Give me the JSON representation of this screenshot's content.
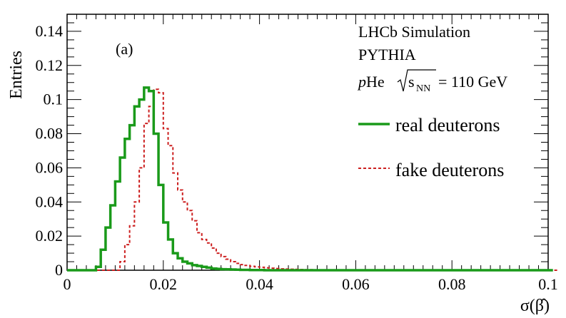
{
  "chart_data": {
    "type": "line",
    "style": "step",
    "xlabel": "σ(β̂)",
    "ylabel": "Entries",
    "xlim": [
      0,
      0.1
    ],
    "ylim": [
      0,
      0.15
    ],
    "bin_width": 0.001,
    "x_ticks": [
      0,
      0.02,
      0.04,
      0.06,
      0.08,
      0.1
    ],
    "x_tick_labels": [
      "0",
      "0.02",
      "0.04",
      "0.06",
      "0.08",
      "0.1"
    ],
    "y_ticks": [
      0,
      0.02,
      0.04,
      0.06,
      0.08,
      0.1,
      0.12,
      0.14
    ],
    "y_tick_labels": [
      "0",
      "0.02",
      "0.04",
      "0.06",
      "0.08",
      "0.1",
      "0.12",
      "0.14"
    ],
    "panel_label": "(a)",
    "annotations": {
      "line1": "LHCb Simulation",
      "line2": "PYTHIA",
      "line3_p": "p",
      "line3_he": "He",
      "line3_s": "s",
      "line3_nn": "NN",
      "line3_energy": "= 110 GeV"
    },
    "series": [
      {
        "name": "real deuterons",
        "color": "#1a9a1a",
        "dash": "solid",
        "values": [
          0,
          0,
          0,
          0,
          0,
          0,
          0.002,
          0.012,
          0.025,
          0.038,
          0.052,
          0.066,
          0.077,
          0.085,
          0.096,
          0.1,
          0.107,
          0.105,
          0.08,
          0.05,
          0.028,
          0.018,
          0.01,
          0.007,
          0.005,
          0.004,
          0.003,
          0.0025,
          0.002,
          0.0015,
          0.001,
          0.0008,
          0.0006,
          0.0005,
          0.0004,
          0.0003,
          0.0002,
          0.0002,
          0.0001,
          0.0001,
          0.0001,
          0,
          0,
          0,
          0,
          0,
          0,
          0,
          0,
          0,
          0,
          0,
          0,
          0,
          0,
          0,
          0,
          0,
          0,
          0,
          0,
          0,
          0,
          0,
          0,
          0,
          0,
          0,
          0,
          0,
          0,
          0,
          0,
          0,
          0,
          0,
          0,
          0,
          0,
          0,
          0,
          0,
          0,
          0,
          0,
          0,
          0,
          0,
          0,
          0,
          0,
          0,
          0,
          0,
          0,
          0,
          0,
          0,
          0,
          0,
          0
        ]
      },
      {
        "name": "fake deuterons",
        "color": "#cc1f1f",
        "dash": "dashed",
        "values": [
          0,
          0,
          0,
          0,
          0,
          0,
          0,
          0,
          0,
          0,
          0,
          0.005,
          0.015,
          0.026,
          0.04,
          0.06,
          0.086,
          0.096,
          0.106,
          0.104,
          0.083,
          0.073,
          0.057,
          0.047,
          0.04,
          0.035,
          0.029,
          0.022,
          0.018,
          0.016,
          0.013,
          0.01,
          0.008,
          0.0065,
          0.005,
          0.004,
          0.0033,
          0.0028,
          0.0023,
          0.002,
          0.0017,
          0.0014,
          0.0012,
          0.001,
          0.0008,
          0.0007,
          0.0006,
          0.0005,
          0.0004,
          0.0003,
          0.0003,
          0.0002,
          0.0002,
          0.0002,
          0.0001,
          0.0001,
          0.0001,
          0.0001,
          0,
          0,
          0,
          0,
          0,
          0,
          0,
          0,
          0,
          0,
          0,
          0,
          0,
          0,
          0,
          0,
          0,
          0,
          0,
          0,
          0,
          0,
          0,
          0,
          0,
          0,
          0,
          0,
          0,
          0,
          0,
          0,
          0,
          0,
          0,
          0,
          0,
          0,
          0,
          0,
          0,
          0,
          0,
          0
        ]
      }
    ]
  }
}
